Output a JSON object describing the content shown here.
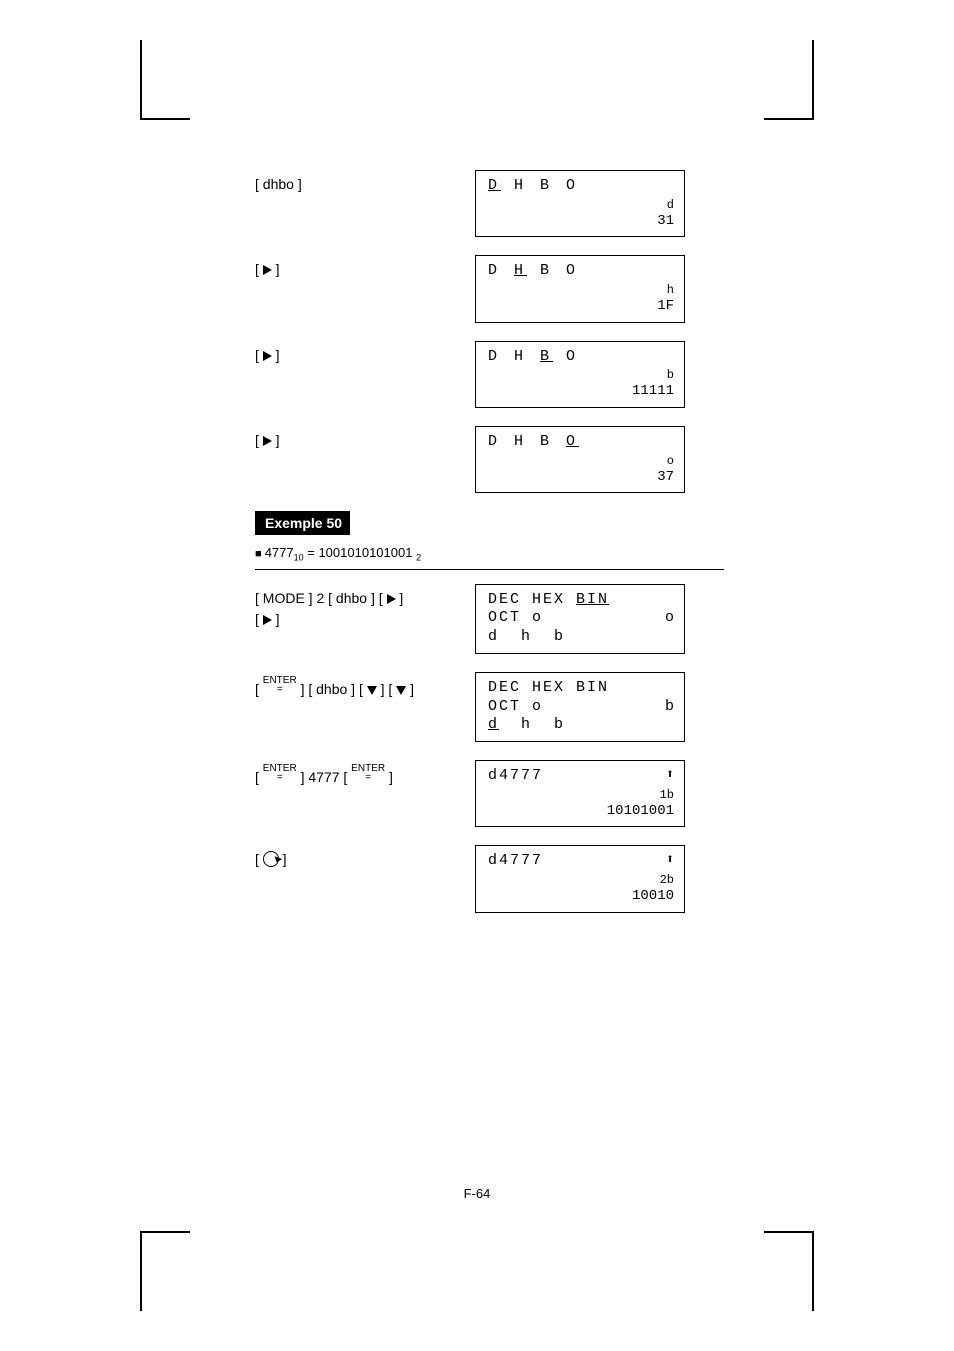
{
  "rows_top": [
    {
      "key_html": "[ dhbo ]",
      "line1": "D H B O",
      "ul_idx": 0,
      "suffix": "d",
      "value": "31"
    },
    {
      "key_html": "[ ▶ ]",
      "line1": "D H B O",
      "ul_idx": 1,
      "suffix": "h",
      "value": "1F"
    },
    {
      "key_html": "[ ▶ ]",
      "line1": "D H B O",
      "ul_idx": 2,
      "suffix": "b",
      "value": "11111"
    },
    {
      "key_html": "[ ▶ ]",
      "line1": "D H B O",
      "ul_idx": 3,
      "suffix": "o",
      "value": "37"
    }
  ],
  "example_label": "Exemple 50",
  "equation": {
    "prefix": "4777",
    "sub1": "10",
    "mid": " = 1001010101001",
    "sub2": "2"
  },
  "rows_bottom": [
    {
      "keys": [
        "[ MODE ] 2 [ dhbo ] [ ▶ ]",
        "[ ▶ ]"
      ],
      "disp_lines": [
        {
          "t": "DEC HEX ",
          "tail": "BIN",
          "tail_ul": true
        },
        {
          "t": "OCT o",
          "right": "o"
        },
        {
          "t": "d  h  b"
        }
      ]
    },
    {
      "keys": [
        "[ ENTER ] [ dhbo ] [ ▼ ] [ ▼ ]"
      ],
      "disp_lines": [
        {
          "t": "DEC HEX BIN"
        },
        {
          "t": "OCT o",
          "right": "b"
        },
        {
          "t": "",
          "lead": "d",
          "lead_ul": true,
          "rest": "  h  b"
        }
      ]
    },
    {
      "keys": [
        "[ ENTER ] 4777 [ ENTER ]"
      ],
      "simple": {
        "head": "d4777",
        "arrow": true,
        "suffix": "1b",
        "value": "10101001"
      }
    },
    {
      "keys": [
        "[ ↻ ]"
      ],
      "simple": {
        "head": "d4777",
        "arrow": true,
        "suffix": "2b",
        "value": "10010"
      }
    }
  ],
  "footer": "F-64"
}
